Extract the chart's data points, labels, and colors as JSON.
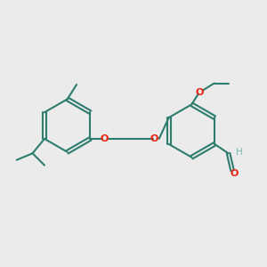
{
  "bg_color": "#ebebeb",
  "bond_color": "#2d7d6e",
  "oxygen_color": "#e82010",
  "aldehyde_h_color": "#7ab8b0",
  "line_width": 1.5,
  "fig_width": 3.0,
  "fig_height": 3.0,
  "xlim": [
    0,
    10
  ],
  "ylim": [
    0,
    10
  ]
}
